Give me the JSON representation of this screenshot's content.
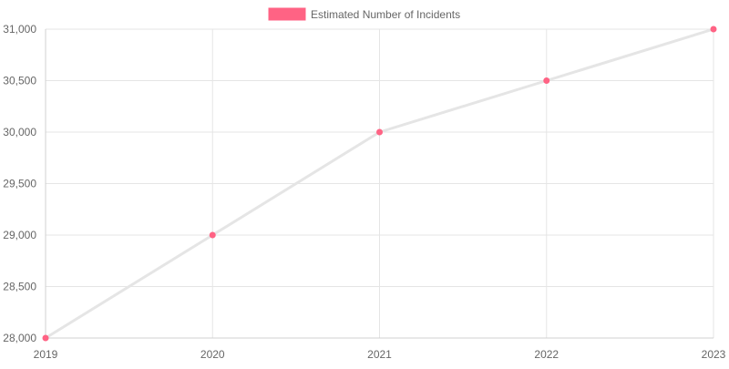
{
  "chart_data": {
    "type": "line",
    "title": "",
    "xlabel": "",
    "ylabel": "",
    "categories": [
      "2019",
      "2020",
      "2021",
      "2022",
      "2023"
    ],
    "series": [
      {
        "name": "Estimated Number of Incidents",
        "values": [
          28000,
          29000,
          30000,
          30500,
          31000
        ],
        "line_color": "#e5e5e5",
        "point_color": "#ff6384",
        "legend_color": "#ff6384"
      }
    ],
    "ylim": [
      28000,
      31000
    ],
    "yticks": [
      28000,
      28500,
      29000,
      29500,
      30000,
      30500,
      31000
    ],
    "ytick_labels": [
      "28,000",
      "28,500",
      "29,000",
      "29,500",
      "30,000",
      "30,500",
      "31,000"
    ],
    "grid": true,
    "legend_position": "top-center",
    "colors": {
      "grid": "#e5e5e5",
      "axis": "#d0d0d0",
      "tick_text": "#666666"
    }
  }
}
